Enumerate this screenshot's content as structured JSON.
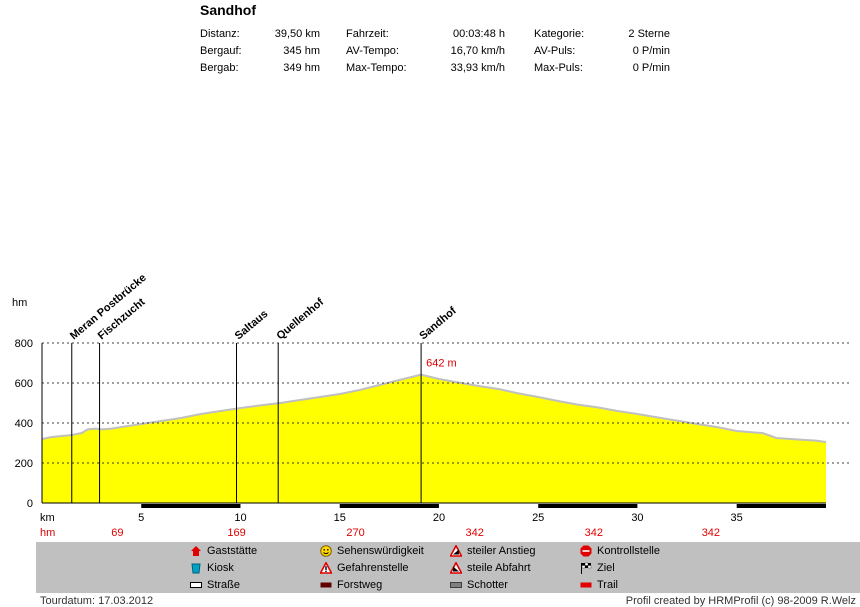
{
  "tour": {
    "title": "Sandhof",
    "stats": [
      {
        "label": "Distanz:",
        "value": "39,50 km"
      },
      {
        "label": "Bergauf:",
        "value": "345 hm"
      },
      {
        "label": "Bergab:",
        "value": "349 hm"
      },
      {
        "label": "Fahrzeit:",
        "value": "00:03:48 h"
      },
      {
        "label": "AV-Tempo:",
        "value": "16,70 km/h"
      },
      {
        "label": "Max-Tempo:",
        "value": "33,93 km/h"
      },
      {
        "label": "Kategorie:",
        "value": "2 Sterne"
      },
      {
        "label": "AV-Puls:",
        "value": "0 P/min"
      },
      {
        "label": "Max-Puls:",
        "value": "0 P/min"
      }
    ]
  },
  "chart_data": {
    "type": "area",
    "ylabel": "hm",
    "xlabel": "km",
    "xlim": [
      0,
      39.5
    ],
    "ylim": [
      0,
      800
    ],
    "yticks": [
      0,
      200,
      400,
      600,
      800
    ],
    "xticks": [
      5,
      10,
      15,
      20,
      25,
      30,
      35
    ],
    "fill_color": "#ffff00",
    "line_color": "#c0c0c0",
    "grid": "dashed horizontal",
    "x": [
      0,
      0.5,
      1,
      1.5,
      2,
      2.3,
      2.7,
      3,
      3.5,
      4,
      5,
      6,
      7,
      8,
      9,
      10,
      11,
      12,
      13,
      14,
      15,
      16,
      17,
      18,
      19.1,
      20,
      21,
      22,
      23,
      24,
      25,
      26,
      27,
      28,
      29,
      30,
      31,
      32,
      33,
      34,
      35,
      36,
      36.3,
      37,
      38,
      39,
      39.5
    ],
    "y": [
      320,
      330,
      335,
      340,
      350,
      368,
      372,
      368,
      372,
      380,
      395,
      410,
      425,
      445,
      460,
      475,
      488,
      500,
      515,
      530,
      545,
      565,
      590,
      615,
      642,
      620,
      602,
      585,
      570,
      548,
      530,
      510,
      492,
      478,
      460,
      445,
      428,
      412,
      395,
      380,
      360,
      352,
      350,
      325,
      318,
      312,
      305
    ],
    "annotation": {
      "x": 19.1,
      "y": 642,
      "text": "642 m"
    },
    "waypoints": [
      {
        "name": "Meran Postbrücke",
        "x": 1.5
      },
      {
        "name": "Fischzucht",
        "x": 2.9
      },
      {
        "name": "Saltaus",
        "x": 9.8
      },
      {
        "name": "Quellenhof",
        "x": 11.9
      },
      {
        "name": "Sandhof",
        "x": 19.1
      }
    ],
    "km_label": "km",
    "hm_label": "hm",
    "hm_row": [
      {
        "x": 3.8,
        "value": "69"
      },
      {
        "x": 9.8,
        "value": "169"
      },
      {
        "x": 15.8,
        "value": "270"
      },
      {
        "x": 21.8,
        "value": "342"
      },
      {
        "x": 27.8,
        "value": "342"
      },
      {
        "x": 33.7,
        "value": "342"
      }
    ],
    "surface_segments": [
      {
        "type": "Straße",
        "from": 0,
        "to": 5
      },
      {
        "type": "Forstweg",
        "from": 5,
        "to": 10
      },
      {
        "type": "Straße",
        "from": 10,
        "to": 15
      },
      {
        "type": "Forstweg",
        "from": 15,
        "to": 20
      },
      {
        "type": "Straße",
        "from": 20,
        "to": 25
      },
      {
        "type": "Forstweg",
        "from": 25,
        "to": 30
      },
      {
        "type": "Straße",
        "from": 30,
        "to": 35
      },
      {
        "type": "Forstweg",
        "from": 35,
        "to": 39.5
      }
    ]
  },
  "legend": [
    {
      "icon": "house-icon",
      "label": "Gaststätte"
    },
    {
      "icon": "kiosk-icon",
      "label": "Kiosk"
    },
    {
      "icon": "road-icon",
      "label": "Straße"
    },
    {
      "icon": "smiley-icon",
      "label": "Sehenswürdigkeit"
    },
    {
      "icon": "warning-icon",
      "label": "Gefahrenstelle"
    },
    {
      "icon": "forest-road-icon",
      "label": "Forstweg"
    },
    {
      "icon": "steep-climb-icon",
      "label": "steiler Anstieg"
    },
    {
      "icon": "steep-descent-icon",
      "label": "steile Abfahrt"
    },
    {
      "icon": "gravel-icon",
      "label": "Schotter"
    },
    {
      "icon": "stop-icon",
      "label": "Kontrollstelle"
    },
    {
      "icon": "finish-flag-icon",
      "label": "Ziel"
    },
    {
      "icon": "trail-icon",
      "label": "Trail"
    }
  ],
  "footer": {
    "date": "Tourdatum: 17.03.2012",
    "credit": "Profil created by HRMProfil (c) 98-2009 R.Welz"
  }
}
